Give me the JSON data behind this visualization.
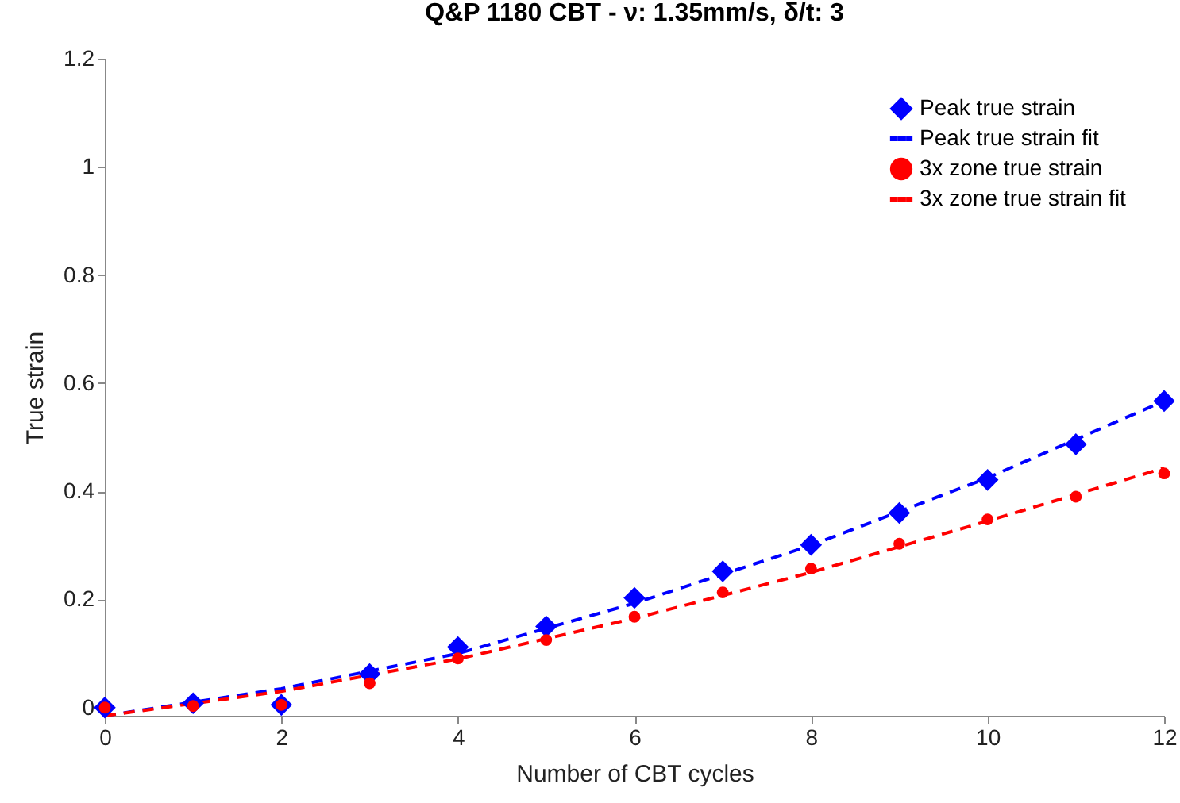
{
  "chart_data": {
    "type": "scatter",
    "title": "Q&P 1180 CBT - ν: 1.35mm/s, δ/t: 3",
    "xlabel": "Number of CBT cycles",
    "ylabel": "True strain",
    "xlim": [
      0,
      12
    ],
    "xticks": [
      0,
      2,
      4,
      6,
      8,
      10,
      12
    ],
    "ylim": [
      -0.015,
      1.2
    ],
    "yticks": [
      0,
      0.2,
      0.4,
      0.6,
      0.8,
      1,
      1.2
    ],
    "grid": false,
    "legend": "top right",
    "series": [
      {
        "name": "Peak true strain",
        "type": "scatter",
        "marker": "diamond",
        "color": "#0000ff",
        "x": [
          0,
          1,
          2,
          3,
          4,
          5,
          6,
          7,
          8,
          9,
          10,
          11,
          12
        ],
        "values": [
          0,
          0.008,
          0.005,
          0.062,
          0.112,
          0.15,
          0.203,
          0.252,
          0.301,
          0.36,
          0.421,
          0.487,
          0.567
        ]
      },
      {
        "name": "Peak true strain fit",
        "type": "line",
        "marker": "none",
        "line_style": "dashed",
        "color": "#0000ff",
        "x": [
          0,
          2,
          4,
          6,
          8,
          10,
          12
        ],
        "values": [
          -0.015,
          0.035,
          0.1,
          0.193,
          0.3,
          0.425,
          0.567
        ]
      },
      {
        "name": "3x zone true strain",
        "type": "scatter",
        "marker": "circle",
        "color": "#ff0000",
        "x": [
          0,
          1,
          2,
          3,
          4,
          5,
          6,
          7,
          8,
          9,
          10,
          11,
          12
        ],
        "values": [
          0,
          0.003,
          0.005,
          0.045,
          0.091,
          0.125,
          0.168,
          0.213,
          0.257,
          0.303,
          0.348,
          0.39,
          0.433
        ]
      },
      {
        "name": "3x zone true strain fit",
        "type": "line",
        "marker": "none",
        "line_style": "dashed",
        "color": "#ff0000",
        "x": [
          0,
          2,
          4,
          6,
          8,
          10,
          12
        ],
        "values": [
          -0.015,
          0.03,
          0.09,
          0.165,
          0.25,
          0.345,
          0.443
        ]
      }
    ]
  }
}
